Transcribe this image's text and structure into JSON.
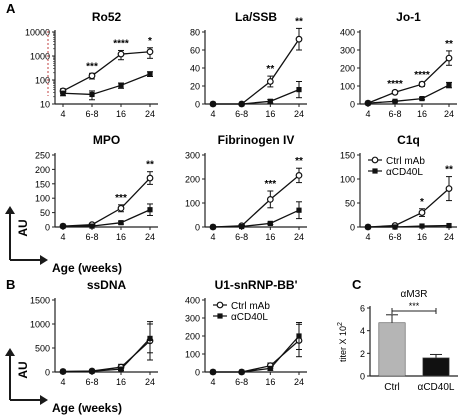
{
  "panel_letters": [
    "A",
    "B",
    "C"
  ],
  "shared": {
    "au_label": "AU",
    "age_label": "Age (weeks)"
  },
  "chart_data": [
    {
      "id": "ro52",
      "type": "line",
      "title": "Ro52",
      "scale": "log",
      "categories": [
        "4",
        "6-8",
        "16",
        "24"
      ],
      "ylim": [
        10,
        10000
      ],
      "yticks": [
        "10",
        "100",
        "1000",
        "10000"
      ],
      "series": [
        {
          "marker": "open",
          "values": [
            35,
            150,
            1200,
            1500
          ],
          "err": [
            8,
            40,
            500,
            700
          ]
        },
        {
          "marker": "filled",
          "values": [
            28,
            25,
            60,
            180
          ],
          "err": [
            6,
            10,
            15,
            40
          ]
        }
      ],
      "annotations": [
        "",
        "***",
        "****",
        "*"
      ]
    },
    {
      "id": "lassb",
      "type": "line",
      "title": "La/SSB",
      "scale": "linear",
      "categories": [
        "4",
        "6-8",
        "16",
        "24"
      ],
      "ylim": [
        0,
        80
      ],
      "yticks": [
        "0",
        "20",
        "40",
        "60",
        "80"
      ],
      "series": [
        {
          "marker": "open",
          "values": [
            0,
            0,
            25,
            72
          ],
          "err": [
            0,
            0,
            6,
            12
          ]
        },
        {
          "marker": "filled",
          "values": [
            0,
            0,
            3,
            16
          ],
          "err": [
            0,
            0,
            2,
            9
          ]
        }
      ],
      "annotations": [
        "",
        "",
        "**",
        "**"
      ]
    },
    {
      "id": "jo1",
      "type": "line",
      "title": "Jo-1",
      "scale": "linear",
      "categories": [
        "4",
        "6-8",
        "16",
        "24"
      ],
      "ylim": [
        0,
        400
      ],
      "yticks": [
        "0",
        "100",
        "200",
        "300",
        "400"
      ],
      "series": [
        {
          "marker": "open",
          "values": [
            5,
            65,
            110,
            255
          ],
          "err": [
            0,
            8,
            12,
            40
          ]
        },
        {
          "marker": "filled",
          "values": [
            5,
            15,
            30,
            105
          ],
          "err": [
            0,
            4,
            6,
            15
          ]
        }
      ],
      "annotations": [
        "",
        "****",
        "****",
        "**"
      ]
    },
    {
      "id": "mpo",
      "type": "line",
      "title": "MPO",
      "scale": "linear",
      "categories": [
        "4",
        "6-8",
        "16",
        "24"
      ],
      "ylim": [
        0,
        250
      ],
      "yticks": [
        "0",
        "50",
        "100",
        "150",
        "200",
        "250"
      ],
      "series": [
        {
          "marker": "open",
          "values": [
            3,
            8,
            65,
            170
          ],
          "err": [
            0,
            2,
            12,
            22
          ]
        },
        {
          "marker": "filled",
          "values": [
            3,
            3,
            15,
            60
          ],
          "err": [
            0,
            0,
            5,
            20
          ]
        }
      ],
      "annotations": [
        "",
        "",
        "***",
        "**"
      ]
    },
    {
      "id": "fibrinogen",
      "type": "line",
      "title": "Fibrinogen IV",
      "scale": "linear",
      "categories": [
        "4",
        "6-8",
        "16",
        "24"
      ],
      "ylim": [
        0,
        300
      ],
      "yticks": [
        "0",
        "100",
        "200",
        "300"
      ],
      "series": [
        {
          "marker": "open",
          "values": [
            0,
            5,
            115,
            215
          ],
          "err": [
            0,
            0,
            35,
            30
          ]
        },
        {
          "marker": "filled",
          "values": [
            0,
            2,
            15,
            70
          ],
          "err": [
            0,
            0,
            5,
            35
          ]
        }
      ],
      "annotations": [
        "",
        "",
        "***",
        "**"
      ]
    },
    {
      "id": "c1q",
      "type": "line",
      "title": "C1q",
      "scale": "linear",
      "categories": [
        "4",
        "6-8",
        "16",
        "24"
      ],
      "ylim": [
        0,
        150
      ],
      "yticks": [
        "0",
        "50",
        "100",
        "150"
      ],
      "series": [
        {
          "marker": "open",
          "values": [
            0,
            3,
            30,
            80
          ],
          "err": [
            0,
            0,
            8,
            25
          ]
        },
        {
          "marker": "filled",
          "values": [
            0,
            0,
            2,
            3
          ],
          "err": [
            0,
            0,
            0,
            0
          ]
        }
      ],
      "annotations": [
        "",
        "",
        "*",
        "**"
      ],
      "legend": [
        "Ctrl mAb",
        "αCD40L"
      ]
    },
    {
      "id": "ssdna",
      "type": "line",
      "title": "ssDNA",
      "scale": "linear",
      "categories": [
        "4",
        "6-8",
        "16",
        "24"
      ],
      "ylim": [
        0,
        1500
      ],
      "yticks": [
        "0",
        "500",
        "1000",
        "1500"
      ],
      "series": [
        {
          "marker": "open",
          "values": [
            10,
            20,
            100,
            650
          ],
          "err": [
            0,
            10,
            60,
            400
          ]
        },
        {
          "marker": "filled",
          "values": [
            10,
            15,
            60,
            700
          ],
          "err": [
            0,
            5,
            30,
            300
          ]
        }
      ],
      "annotations": [
        "",
        "",
        "",
        ""
      ]
    },
    {
      "id": "u1snrnp",
      "type": "line",
      "title": "U1-snRNP-BB'",
      "scale": "linear",
      "categories": [
        "4",
        "6-8",
        "16",
        "24"
      ],
      "ylim": [
        0,
        400
      ],
      "yticks": [
        "0",
        "100",
        "200",
        "300",
        "400"
      ],
      "series": [
        {
          "marker": "open",
          "values": [
            0,
            0,
            35,
            175
          ],
          "err": [
            0,
            0,
            15,
            90
          ]
        },
        {
          "marker": "filled",
          "values": [
            0,
            0,
            20,
            200
          ],
          "err": [
            0,
            0,
            10,
            75
          ]
        }
      ],
      "annotations": [
        "",
        "",
        "",
        ""
      ],
      "legend": [
        "Ctrl mAb",
        "αCD40L"
      ]
    },
    {
      "id": "am3r",
      "type": "bar",
      "title": "αM3R",
      "categories": [
        "Ctrl",
        "αCD40L"
      ],
      "values": [
        4.7,
        1.6
      ],
      "err": [
        0.7,
        0.3
      ],
      "colors": [
        "#b5b5b5",
        "#111111"
      ],
      "ylim": [
        0,
        6
      ],
      "yticks": [
        "0",
        "2",
        "4",
        "6"
      ],
      "ylabel": "titer X 10",
      "ylabel_sup": "2",
      "significance": "***"
    }
  ]
}
